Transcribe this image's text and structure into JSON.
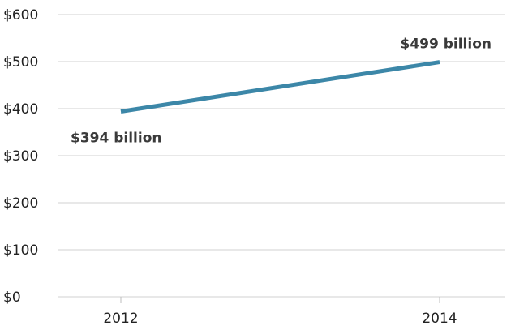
{
  "chart_data": {
    "type": "line",
    "title": "",
    "xlabel": "",
    "ylabel": "",
    "x": [
      "2012",
      "2014"
    ],
    "series": [
      {
        "values": [
          394,
          499
        ]
      }
    ],
    "data_labels": [
      "$394 billion",
      "$499 billion"
    ],
    "y_ticks": [
      0,
      100,
      200,
      300,
      400,
      500,
      600
    ],
    "y_tick_labels": [
      "$0",
      "$100",
      "$200",
      "$300",
      "$400",
      "$500",
      "$600"
    ],
    "ylim": [
      0,
      600
    ],
    "grid": true,
    "colors": {
      "line": "#3c87a8"
    }
  }
}
